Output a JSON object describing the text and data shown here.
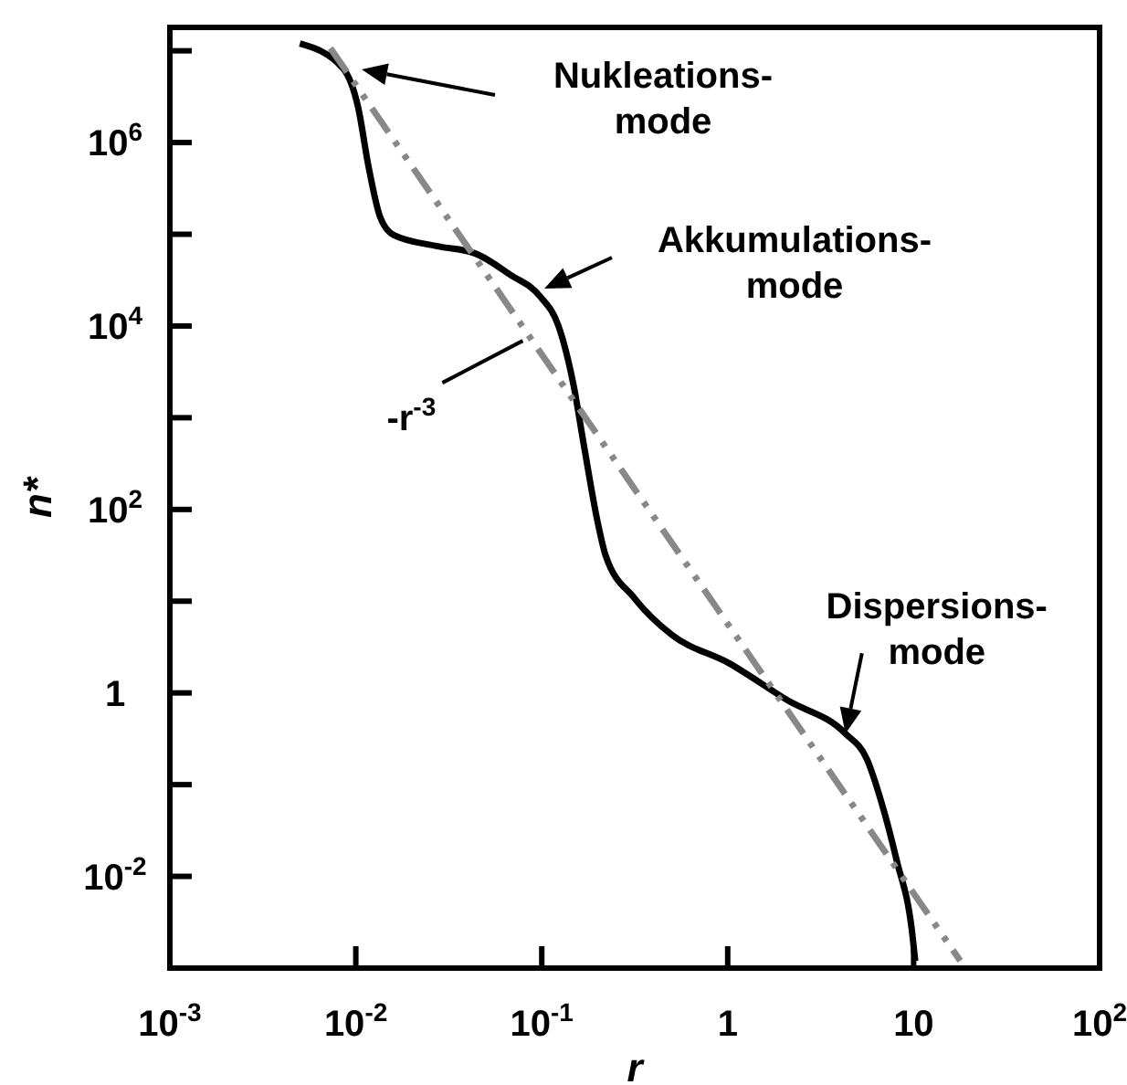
{
  "chart_data": {
    "type": "line",
    "xlabel": "r",
    "ylabel": "n*",
    "log": "xy",
    "grid": false,
    "xlim": [
      0.001,
      100
    ],
    "ylim": [
      0.001,
      18000000
    ],
    "xticks": [
      {
        "value": 0.001,
        "label": "10$^{-3}$"
      },
      {
        "value": 0.01,
        "label": "10$^{-2}$"
      },
      {
        "value": 0.1,
        "label": "10$^{-1}$"
      },
      1,
      10,
      {
        "value": 100,
        "label": "10$^{2}$"
      }
    ],
    "yticks": [
      {
        "value": 0.01,
        "label": "10$^{-2}$"
      },
      {
        "value": 0.1,
        "label": null
      },
      1,
      {
        "value": 10,
        "label": null
      },
      {
        "value": 100,
        "label": "10$^{2}$"
      },
      {
        "value": 1000,
        "label": null
      },
      {
        "value": 10000,
        "label": "10$^{4}$"
      },
      {
        "value": 100000,
        "label": null
      },
      {
        "value": 1000000,
        "label": "10$^{6}$"
      },
      {
        "value": 10000000,
        "label": null
      }
    ],
    "series": [
      {
        "color": "#000000",
        "line_style": "solid",
        "x": [
          0.005,
          0.0085,
          0.0103,
          0.0117,
          0.0135,
          0.016,
          0.0275,
          0.0437,
          0.068,
          0.098,
          0.123,
          0.148,
          0.17,
          0.2,
          0.22,
          0.316,
          0.5,
          1.02,
          2.1,
          4.3,
          5.6,
          6.7,
          8.1,
          9.8,
          10.2
        ],
        "values": [
          12000000,
          6500000,
          2400000,
          550000,
          155000,
          98000,
          74000,
          62000,
          36000,
          21000,
          10000,
          2300,
          450,
          72,
          32,
          10.7,
          4.3,
          2.1,
          0.83,
          0.36,
          0.19,
          0.065,
          0.015,
          0.0025,
          0.0012
        ]
      },
      {
        "type": "line",
        "color": "#888888",
        "line_style": "dashed",
        "x": [
          0.0073,
          17.8
        ],
        "values": [
          10700000,
          0.0012
        ]
      }
    ],
    "annotations": [
      "Nukleations-\nmode",
      "Akkumulations-\nmode",
      {
        "text": "Dispersions-\nmode",
        "x": 4.3,
        "y": 0.36
      },
      {
        "text": "-r$^{-3}$",
        "x": 0.079,
        "y": 6900
      }
    ]
  }
}
